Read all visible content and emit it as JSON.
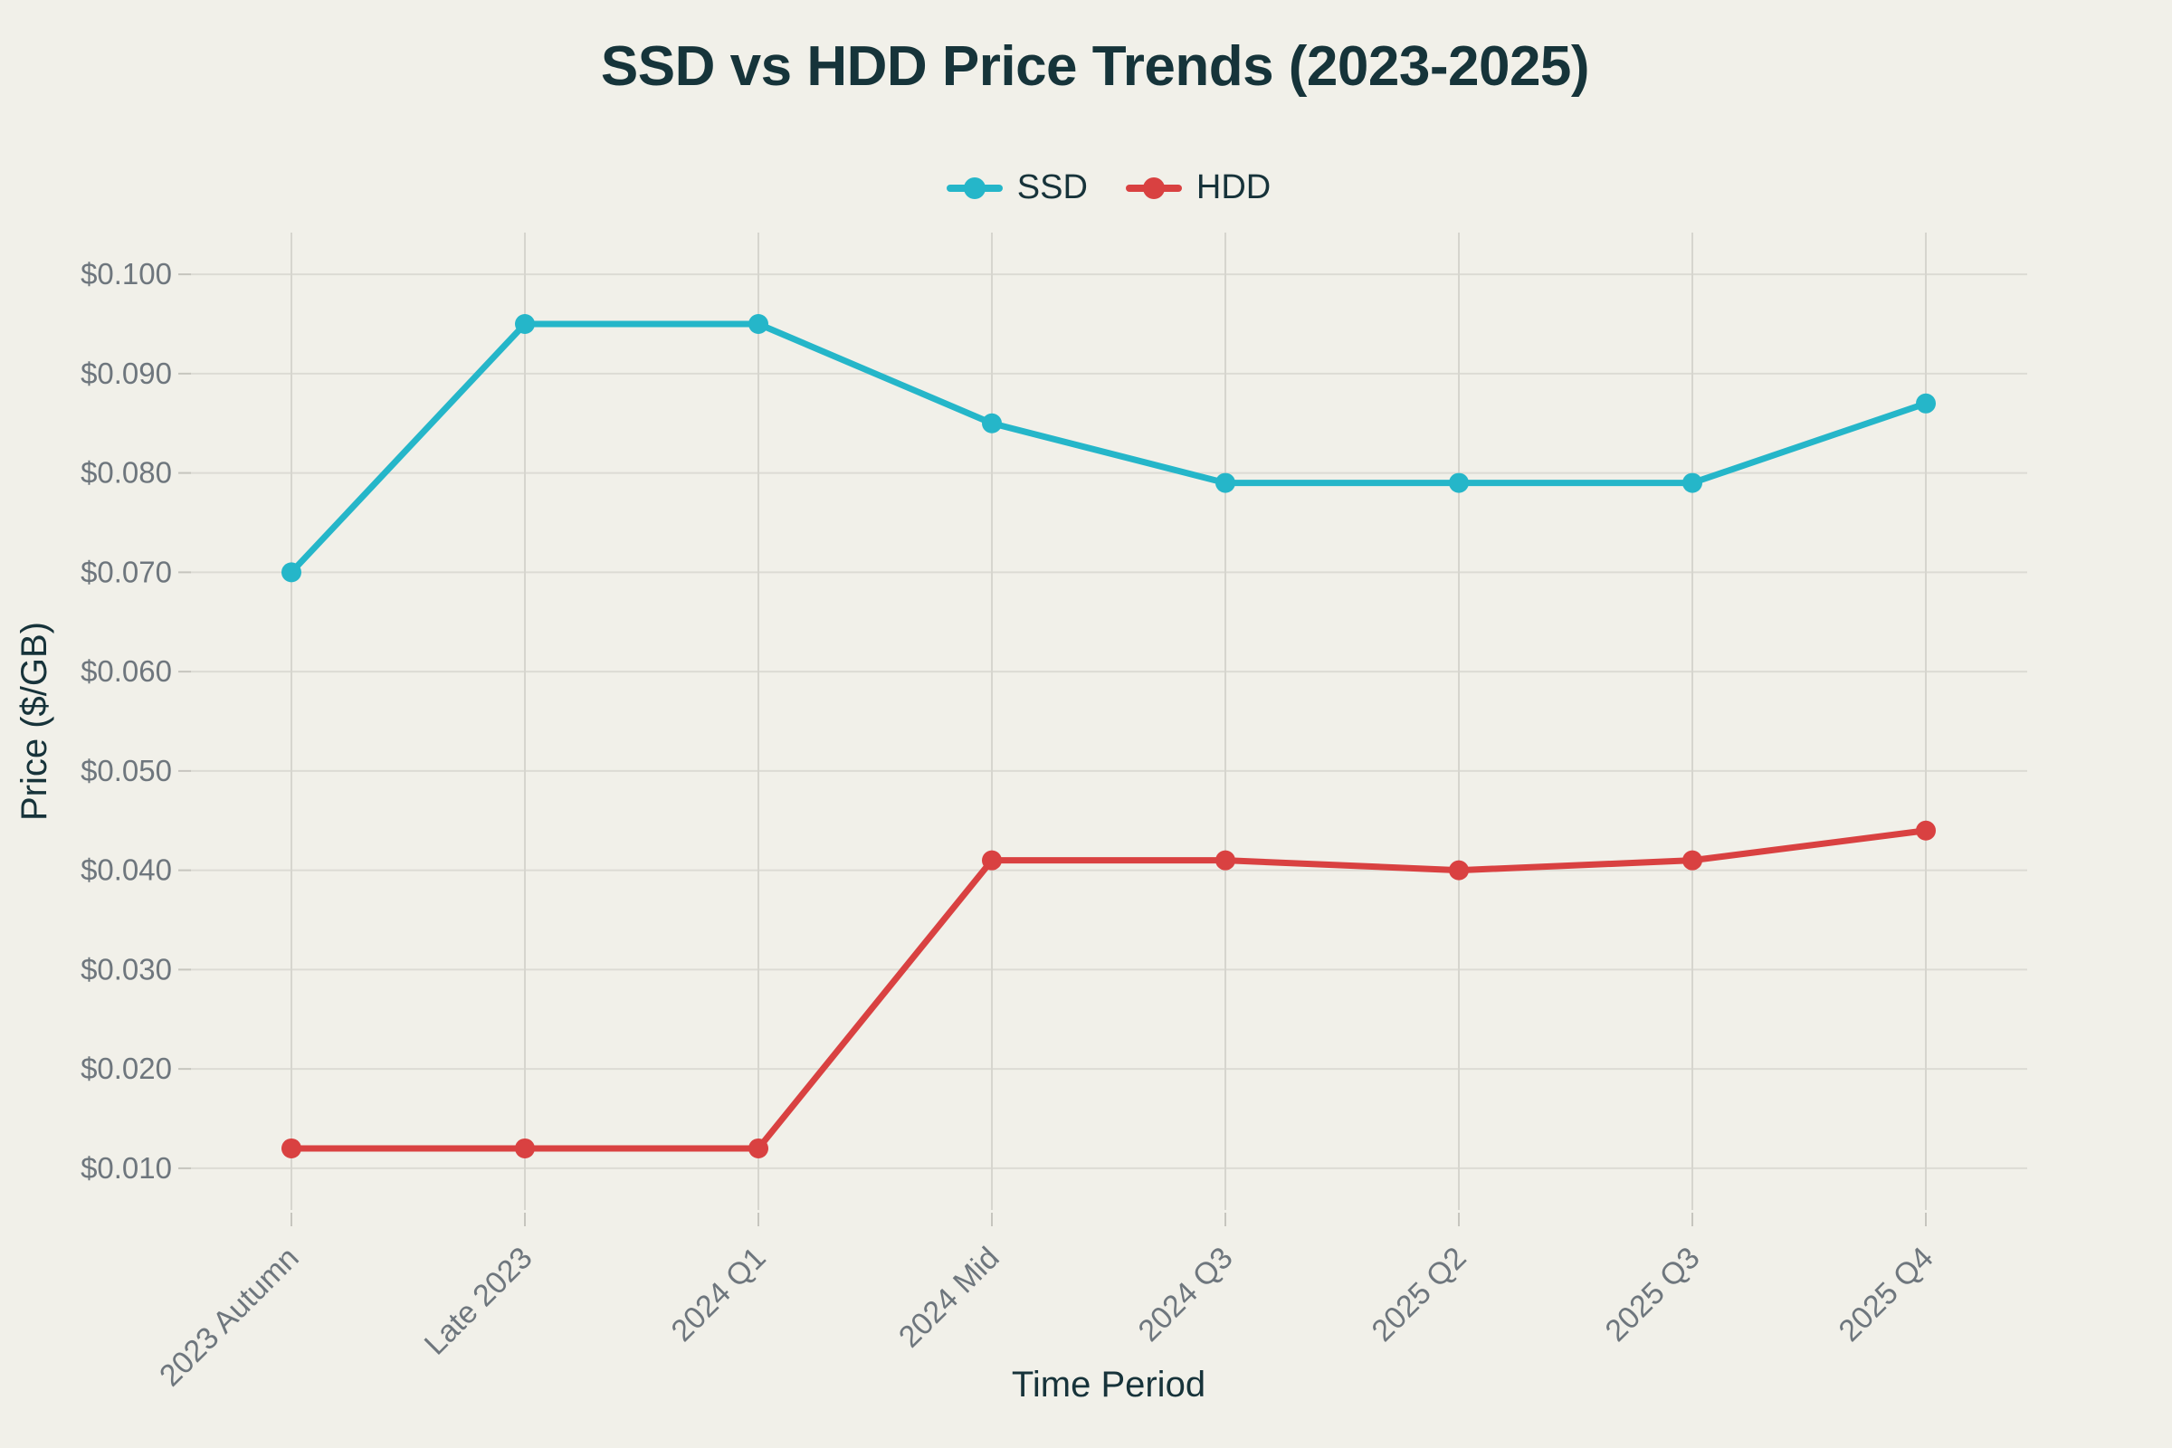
{
  "page": {
    "background": "#f1f0e9"
  },
  "chart_data": {
    "type": "line",
    "title": "SSD vs HDD Price Trends (2023-2025)",
    "xlabel": "Time Period",
    "ylabel": "Price ($/GB)",
    "categories": [
      "2023 Autumn",
      "Late 2023",
      "2024 Q1",
      "2024 Mid",
      "2024 Q3",
      "2025 Q2",
      "2025 Q3",
      "2025 Q4"
    ],
    "series": [
      {
        "name": "SSD",
        "color": "#25b6c9",
        "values": [
          0.07,
          0.095,
          0.095,
          0.085,
          0.079,
          0.079,
          0.079,
          0.087
        ]
      },
      {
        "name": "HDD",
        "color": "#d94141",
        "values": [
          0.012,
          0.012,
          0.012,
          0.041,
          0.041,
          0.04,
          0.041,
          0.044
        ]
      }
    ],
    "yticks": {
      "values": [
        0.01,
        0.02,
        0.03,
        0.04,
        0.05,
        0.06,
        0.07,
        0.08,
        0.09,
        0.1
      ],
      "labels": [
        "$0.010",
        "$0.020",
        "$0.030",
        "$0.040",
        "$0.050",
        "$0.060",
        "$0.070",
        "$0.080",
        "$0.090",
        "$0.100"
      ]
    },
    "ylim": [
      0.0058,
      0.1042
    ],
    "grid": true,
    "legend_position": "top-center",
    "marker": "circle"
  },
  "colors": {
    "title_text": "#16343a",
    "axis_title_text": "#17333a",
    "tick_text": "#6e767d",
    "grid_horizontal": "#dcdbd4",
    "grid_vertical": "#d6d5ce",
    "tick_mark": "#c6c5be"
  }
}
